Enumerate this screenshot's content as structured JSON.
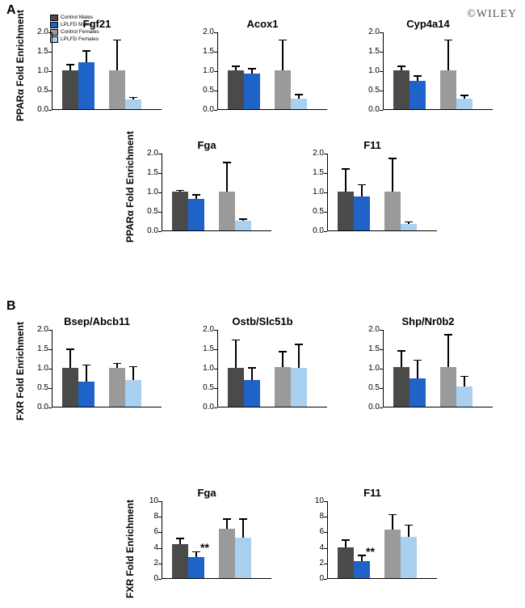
{
  "watermark": "©WILEY",
  "legend_labels": [
    "Control Males",
    "LPLFD Males",
    "Control Females",
    "LPLFD Females"
  ],
  "colors": {
    "control_males": "#4a4a4a",
    "lplfd_males": "#1f63c9",
    "control_females": "#9a9a9a",
    "lplfd_females": "#aad0f0",
    "axis": "#000000",
    "bg": "#ffffff"
  },
  "panelA": {
    "label": "A",
    "ylabel": "PPARα Fold Enrichment",
    "ylim": [
      0,
      2.0
    ],
    "yticks": [
      0.0,
      0.5,
      1.0,
      1.5,
      2.0
    ],
    "charts_row1": [
      {
        "title": "Fgf21",
        "values": [
          1.0,
          1.2,
          1.0,
          0.25
        ],
        "errors": [
          0.15,
          0.3,
          0.78,
          0.05
        ]
      },
      {
        "title": "Acox1",
        "values": [
          1.0,
          0.92,
          1.0,
          0.28
        ],
        "errors": [
          0.1,
          0.12,
          0.78,
          0.1
        ]
      },
      {
        "title": "Cyp4a14",
        "values": [
          1.0,
          0.73,
          1.0,
          0.27
        ],
        "errors": [
          0.1,
          0.12,
          0.78,
          0.08
        ]
      }
    ],
    "charts_row2": [
      {
        "title": "Fga",
        "values": [
          1.0,
          0.82,
          1.0,
          0.24
        ],
        "errors": [
          0.03,
          0.1,
          0.75,
          0.05
        ]
      },
      {
        "title": "F11",
        "values": [
          1.0,
          0.88,
          1.0,
          0.17
        ],
        "errors": [
          0.58,
          0.3,
          0.85,
          0.05
        ]
      }
    ]
  },
  "panelB": {
    "label": "B",
    "ylabel": "FXR Fold Enrichment",
    "ylim_row1": [
      0,
      2.0
    ],
    "yticks_row1": [
      0.0,
      0.5,
      1.0,
      1.5,
      2.0
    ],
    "charts_row1": [
      {
        "title": "Bsep/Abcb11",
        "values": [
          1.0,
          0.65,
          1.0,
          0.68
        ],
        "errors": [
          0.48,
          0.42,
          0.12,
          0.35
        ]
      },
      {
        "title": "Ostb/Slc51b",
        "values": [
          1.0,
          0.68,
          1.02,
          1.0
        ],
        "errors": [
          0.72,
          0.32,
          0.4,
          0.6
        ]
      },
      {
        "title": "Shp/Nr0b2",
        "values": [
          1.02,
          0.72,
          1.02,
          0.53
        ],
        "errors": [
          0.42,
          0.48,
          0.83,
          0.25
        ]
      }
    ],
    "ylim_row2": [
      0,
      10
    ],
    "yticks_row2": [
      0,
      2,
      4,
      6,
      8,
      10
    ],
    "charts_row2": [
      {
        "title": "Fga",
        "values": [
          4.4,
          2.7,
          6.4,
          5.2
        ],
        "errors": [
          0.7,
          0.7,
          1.2,
          2.4
        ],
        "sig": [
          null,
          "**",
          null,
          null
        ]
      },
      {
        "title": "F11",
        "values": [
          4.0,
          2.2,
          6.3,
          5.3
        ],
        "errors": [
          0.9,
          0.7,
          1.9,
          1.5
        ],
        "sig": [
          null,
          "**",
          null,
          null
        ]
      }
    ]
  }
}
